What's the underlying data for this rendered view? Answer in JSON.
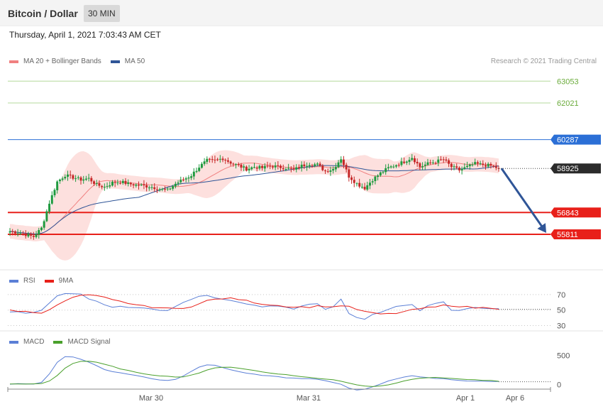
{
  "header": {
    "title": "Bitcoin / Dollar",
    "timeframe": "30 MIN"
  },
  "datetime": "Thursday, April 1, 2021 7:03:43 AM CET",
  "copyright": "Research © 2021 Trading Central",
  "legends": {
    "price": [
      {
        "label": "MA 20 + Bollinger Bands",
        "color": "#f08080"
      },
      {
        "label": "MA 50",
        "color": "#2f5597"
      }
    ],
    "rsi": [
      {
        "label": "RSI",
        "color": "#5b7fd6"
      },
      {
        "label": "9MA",
        "color": "#e8201a"
      }
    ],
    "macd": [
      {
        "label": "MACD",
        "color": "#5b7fd6"
      },
      {
        "label": "MACD Signal",
        "color": "#4aa02c"
      }
    ]
  },
  "chart_data": [
    {
      "type": "candlestick",
      "title": "Bitcoin / Dollar",
      "ylim": [
        54300,
        63700
      ],
      "x_ticks": [
        "Mar 30",
        "Mar 31",
        "Apr 1",
        "Apr 6"
      ],
      "last_price": {
        "value": 58925,
        "label": "58925"
      },
      "levels": [
        {
          "value": 63053,
          "label": "63053",
          "kind": "resistance",
          "style": "thin"
        },
        {
          "value": 62021,
          "label": "62021",
          "kind": "resistance",
          "style": "thin"
        },
        {
          "value": 60287,
          "label": "60287",
          "kind": "pivot",
          "style": "medium"
        },
        {
          "value": 56843,
          "label": "56843",
          "kind": "support",
          "style": "thick"
        },
        {
          "value": 55811,
          "label": "55811",
          "kind": "support",
          "style": "thick"
        }
      ],
      "close_path": [
        55950,
        55900,
        55800,
        55700,
        56100,
        57300,
        58300,
        58600,
        58500,
        58400,
        58450,
        58150,
        58050,
        58250,
        58300,
        58200,
        58150,
        58100,
        58050,
        57950,
        57900,
        58200,
        58400,
        58600,
        59000,
        59300,
        59300,
        59400,
        59200,
        59050,
        58900,
        59000,
        58950,
        59050,
        59000,
        58950,
        58850,
        59050,
        59150,
        59100,
        58800,
        58900,
        59400,
        58550,
        58200,
        58000,
        58400,
        58700,
        58950,
        59100,
        59250,
        59450,
        59000,
        59150,
        59250,
        59350,
        59000,
        58850,
        59000,
        59150,
        59100,
        59050,
        58925
      ],
      "projection": {
        "from": 58925,
        "to": 55811
      }
    },
    {
      "type": "line",
      "title": "RSI",
      "ylim": [
        25,
        80
      ],
      "y_ticks": [
        70,
        50,
        30
      ],
      "series": [
        {
          "name": "RSI",
          "values": [
            48,
            47,
            46,
            46,
            49,
            60,
            68,
            71,
            72,
            70,
            64,
            61,
            56,
            54,
            55,
            54,
            54,
            52,
            52,
            50,
            50,
            55,
            60,
            63,
            67,
            70,
            66,
            64,
            63,
            61,
            58,
            56,
            54,
            56,
            55,
            53,
            52,
            55,
            57,
            58,
            52,
            54,
            65,
            46,
            40,
            39,
            44,
            47,
            50,
            54,
            56,
            58,
            50,
            55,
            58,
            60,
            50,
            49,
            52,
            54,
            53,
            52,
            51
          ]
        },
        {
          "name": "9MA",
          "values": [
            50,
            49,
            48,
            47,
            47,
            51,
            56,
            62,
            66,
            69,
            69,
            68,
            66,
            63,
            61,
            59,
            57,
            55,
            54,
            53,
            52,
            52,
            53,
            55,
            58,
            62,
            64,
            65,
            65,
            64,
            62,
            60,
            58,
            57,
            56,
            55,
            54,
            54,
            54,
            55,
            55,
            54,
            56,
            54,
            51,
            48,
            46,
            45,
            45,
            46,
            48,
            50,
            52,
            53,
            54,
            56,
            56,
            55,
            54,
            53,
            53,
            53,
            52
          ]
        }
      ]
    },
    {
      "type": "line",
      "title": "MACD",
      "ylim": [
        -100,
        650
      ],
      "y_ticks": [
        500,
        0
      ],
      "series": [
        {
          "name": "MACD",
          "values": [
            10,
            15,
            12,
            8,
            40,
            180,
            380,
            480,
            470,
            430,
            380,
            320,
            260,
            220,
            200,
            180,
            160,
            130,
            100,
            80,
            70,
            90,
            150,
            230,
            300,
            340,
            330,
            290,
            250,
            220,
            200,
            180,
            160,
            150,
            140,
            120,
            110,
            105,
            100,
            95,
            70,
            40,
            10,
            -60,
            -90,
            -80,
            -40,
            10,
            60,
            100,
            130,
            150,
            130,
            120,
            110,
            100,
            80,
            70,
            65,
            62,
            60,
            55,
            50
          ]
        },
        {
          "name": "MACD Signal",
          "values": [
            10,
            11,
            12,
            12,
            18,
            60,
            160,
            280,
            360,
            400,
            400,
            380,
            350,
            310,
            270,
            240,
            210,
            185,
            165,
            150,
            140,
            130,
            135,
            160,
            200,
            250,
            290,
            300,
            295,
            280,
            260,
            240,
            220,
            200,
            185,
            170,
            155,
            140,
            125,
            110,
            95,
            80,
            60,
            30,
            0,
            -20,
            -30,
            -20,
            0,
            30,
            60,
            90,
            110,
            120,
            120,
            115,
            105,
            95,
            85,
            80,
            75,
            70,
            60
          ]
        }
      ]
    }
  ]
}
